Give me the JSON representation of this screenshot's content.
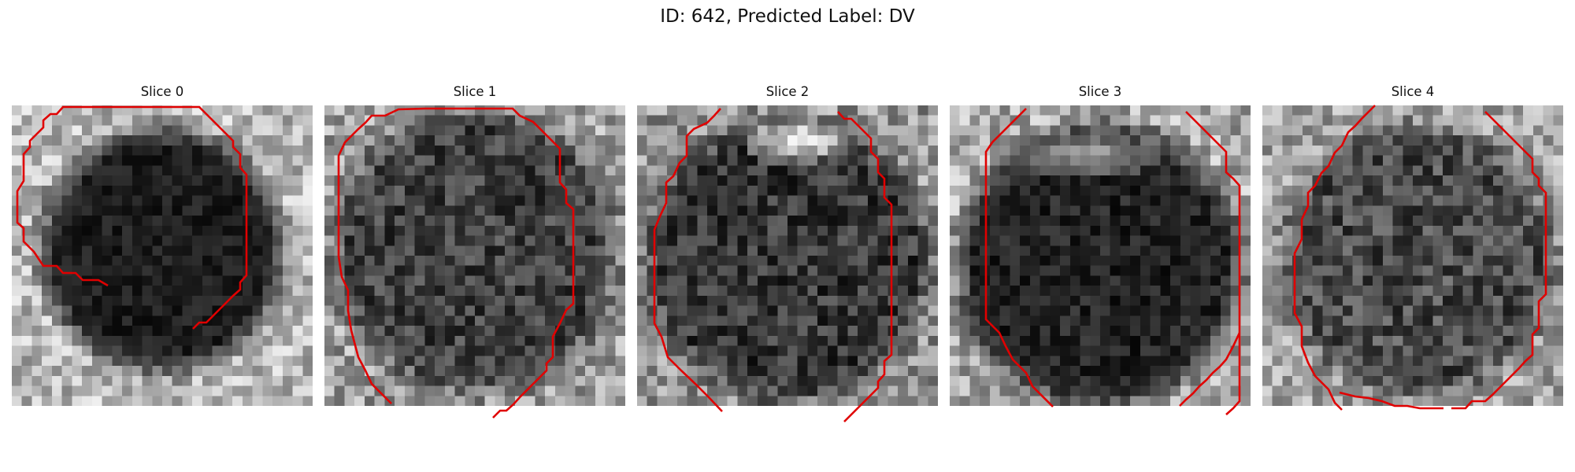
{
  "figure": {
    "title": "ID: 642, Predicted Label: DV"
  },
  "panels": [
    {
      "title": "Slice 0"
    },
    {
      "title": "Slice 1"
    },
    {
      "title": "Slice 2"
    },
    {
      "title": "Slice 3"
    },
    {
      "title": "Slice 4"
    }
  ],
  "colors": {
    "contour": "#e00000",
    "colormap": "gray"
  }
}
